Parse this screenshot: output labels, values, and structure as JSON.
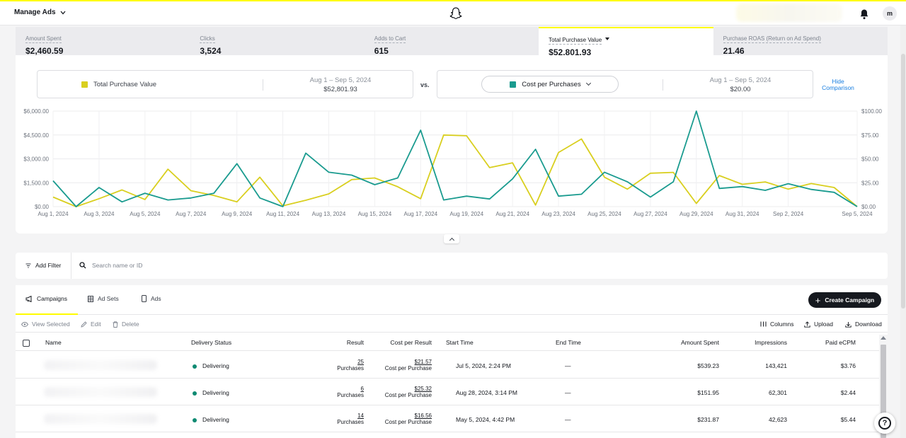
{
  "topbar": {
    "app_title": "Manage Ads",
    "avatar_initial": "m"
  },
  "metrics": [
    {
      "label": "Amount Spent",
      "value": "$2,460.59",
      "active": false
    },
    {
      "label": "Clicks",
      "value": "3,524",
      "active": false
    },
    {
      "label": "Adds to Cart",
      "value": "615",
      "active": false
    },
    {
      "label": "Total Purchase Value",
      "value": "$52,801.93",
      "active": true
    },
    {
      "label": "Purchase ROAS (Return on Ad Spend)",
      "value": "21.46",
      "active": false
    }
  ],
  "comparison": {
    "primary": {
      "name": "Total Purchase Value",
      "date_range": "Aug 1 – Sep 5, 2024",
      "value": "$52,801.93",
      "color": "#d9cf1f"
    },
    "vs_label": "vs.",
    "secondary": {
      "name": "Cost per Purchases",
      "date_range": "Aug 1 – Sep 5, 2024",
      "value": "$20.00",
      "color": "#1a9b8f"
    },
    "hide_label_line1": "Hide",
    "hide_label_line2": "Comparison"
  },
  "chart_data": {
    "type": "line",
    "x": [
      "Aug 1",
      "Aug 2",
      "Aug 3",
      "Aug 4",
      "Aug 5",
      "Aug 6",
      "Aug 7",
      "Aug 8",
      "Aug 9",
      "Aug 10",
      "Aug 11",
      "Aug 12",
      "Aug 13",
      "Aug 14",
      "Aug 15",
      "Aug 16",
      "Aug 17",
      "Aug 18",
      "Aug 19",
      "Aug 20",
      "Aug 21",
      "Aug 22",
      "Aug 23",
      "Aug 24",
      "Aug 25",
      "Aug 26",
      "Aug 27",
      "Aug 28",
      "Aug 29",
      "Aug 30",
      "Aug 31",
      "Sep 1",
      "Sep 2",
      "Sep 3",
      "Sep 4",
      "Sep 5"
    ],
    "x_tick_labels": [
      "Aug 1, 2024",
      "Aug 3, 2024",
      "Aug 5, 2024",
      "Aug 7, 2024",
      "Aug 9, 2024",
      "Aug 11, 2024",
      "Aug 13, 2024",
      "Aug 15, 2024",
      "Aug 17, 2024",
      "Aug 19, 2024",
      "Aug 21, 2024",
      "Aug 23, 2024",
      "Aug 25, 2024",
      "Aug 27, 2024",
      "Aug 29, 2024",
      "Aug 31, 2024",
      "Sep 2, 2024",
      "Sep 5, 2024"
    ],
    "x_tick_index": [
      0,
      2,
      4,
      6,
      8,
      10,
      12,
      14,
      16,
      18,
      20,
      22,
      24,
      26,
      28,
      30,
      32,
      35
    ],
    "y_left_ticks": [
      "$0.00",
      "$1,500.00",
      "$3,000.00",
      "$4,500.00",
      "$6,000.00"
    ],
    "y_left_lim": [
      0,
      6000
    ],
    "y_right_ticks": [
      "$0.00",
      "$25.00",
      "$50.00",
      "$75.00",
      "$100.00"
    ],
    "y_right_lim": [
      0,
      100
    ],
    "series": [
      {
        "name": "Total Purchase Value",
        "axis": "left",
        "color": "#d9cf1f",
        "values": [
          600,
          0,
          500,
          1050,
          450,
          2350,
          1000,
          700,
          300,
          1850,
          50,
          400,
          800,
          1700,
          1800,
          1250,
          500,
          4500,
          4450,
          2450,
          2750,
          100,
          3400,
          4250,
          1850,
          1100,
          2100,
          2150,
          200,
          1950,
          1400,
          1550,
          1100,
          1450,
          1200,
          0
        ]
      },
      {
        "name": "Cost per Purchases",
        "axis": "right",
        "color": "#1a9b8f",
        "values": [
          27,
          0,
          20,
          5,
          14,
          7,
          9,
          14,
          45,
          9,
          0,
          56,
          36,
          33,
          23,
          30,
          80,
          7,
          11,
          8,
          29,
          60,
          11,
          13,
          36,
          26,
          10,
          26,
          100,
          19,
          21,
          17,
          24,
          18,
          15,
          0
        ]
      }
    ],
    "grid": true
  },
  "filter": {
    "add_filter_label": "Add Filter",
    "search_placeholder": "Search name or ID"
  },
  "tabs": [
    {
      "label": "Campaigns",
      "icon": "megaphone-icon",
      "active": true
    },
    {
      "label": "Ad Sets",
      "icon": "adsets-icon",
      "active": false
    },
    {
      "label": "Ads",
      "icon": "phone-icon",
      "active": false
    }
  ],
  "create_button": "Create Campaign",
  "actions": {
    "view_selected": "View Selected",
    "edit": "Edit",
    "delete": "Delete",
    "columns": "Columns",
    "upload": "Upload",
    "download": "Download"
  },
  "table": {
    "headers": {
      "name": "Name",
      "delivery_status": "Delivery Status",
      "result": "Result",
      "cost_per_result": "Cost per Result",
      "start_time": "Start Time",
      "end_time": "End Time",
      "amount_spent": "Amount Spent",
      "impressions": "Impressions",
      "paid_ecpm": "Paid eCPM"
    },
    "rows": [
      {
        "status": "Delivering",
        "result": "25",
        "result_unit": "Purchases",
        "cost": "$21.57",
        "cost_unit": "Cost per Purchase",
        "start": "Jul 5, 2024, 2:24 PM",
        "end": "—",
        "spent": "$539.23",
        "impressions": "143,421",
        "ecpm": "$3.76"
      },
      {
        "status": "Delivering",
        "result": "6",
        "result_unit": "Purchases",
        "cost": "$25.32",
        "cost_unit": "Cost per Purchase",
        "start": "Aug 28, 2024, 3:14 PM",
        "end": "—",
        "spent": "$151.95",
        "impressions": "62,301",
        "ecpm": "$2.44"
      },
      {
        "status": "Delivering",
        "result": "14",
        "result_unit": "Purchases",
        "cost": "$16.56",
        "cost_unit": "Cost per Purchase",
        "start": "May 5, 2024, 4:42 PM",
        "end": "—",
        "spent": "$231.87",
        "impressions": "42,623",
        "ecpm": "$5.44"
      }
    ]
  }
}
